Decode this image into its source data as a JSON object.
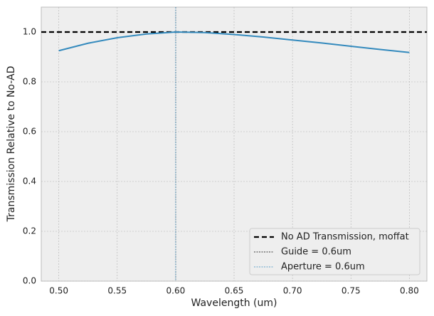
{
  "chart_data": {
    "type": "line",
    "xlabel": "Wavelength (um)",
    "ylabel": "Transmission Relative to No-AD",
    "x": [
      0.5,
      0.525,
      0.55,
      0.575,
      0.6,
      0.625,
      0.65,
      0.675,
      0.7,
      0.725,
      0.75,
      0.775,
      0.8
    ],
    "series": [
      {
        "color": "#348abd",
        "values": [
          0.925,
          0.955,
          0.977,
          0.992,
          1.0,
          0.998,
          0.99,
          0.98,
          0.968,
          0.956,
          0.943,
          0.93,
          0.918
        ]
      }
    ],
    "hlines": [
      {
        "name": "No AD Transmission, moffat",
        "value": 1.0,
        "color": "#000000"
      }
    ],
    "vlines": [
      {
        "name": "Guide = 0.6um",
        "value": 0.6,
        "color": "#000000"
      },
      {
        "name": "Aperture = 0.6um",
        "value": 0.6,
        "color": "#348abd"
      }
    ],
    "xlim": [
      0.485,
      0.815
    ],
    "ylim": [
      0,
      1.1
    ],
    "xticks": [
      {
        "value": 0.5,
        "label": "0.50"
      },
      0.55,
      {
        "value": 0.6,
        "label": "0.60"
      },
      0.65,
      {
        "value": 0.7,
        "label": "0.70"
      },
      0.75,
      {
        "value": 0.8,
        "label": "0.80"
      }
    ],
    "yticks": [
      {
        "value": 0,
        "label": "0.0"
      },
      0.2,
      0.4,
      0.6,
      0.8,
      {
        "value": 1,
        "label": "1.0"
      }
    ],
    "grid": true,
    "legend": "lower right"
  }
}
